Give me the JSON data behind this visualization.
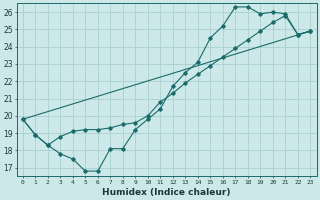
{
  "xlabel": "Humidex (Indice chaleur)",
  "bg_color": "#cce8e8",
  "grid_color": "#aad0d0",
  "line_color": "#1a6b6b",
  "xlim": [
    -0.5,
    23.5
  ],
  "ylim": [
    16.5,
    26.5
  ],
  "xticks": [
    0,
    1,
    2,
    3,
    4,
    5,
    6,
    7,
    8,
    9,
    10,
    11,
    12,
    13,
    14,
    15,
    16,
    17,
    18,
    19,
    20,
    21,
    22,
    23
  ],
  "yticks": [
    17,
    18,
    19,
    20,
    21,
    22,
    23,
    24,
    25,
    26
  ],
  "line1_x": [
    0,
    1,
    2,
    3,
    4,
    5,
    6,
    7,
    8,
    9,
    10,
    11,
    12,
    13,
    14,
    15,
    16,
    17,
    18,
    19,
    20,
    21,
    22,
    23
  ],
  "line1_y": [
    19.8,
    18.9,
    18.3,
    17.8,
    17.5,
    16.8,
    16.8,
    18.1,
    18.1,
    19.2,
    19.8,
    20.4,
    21.7,
    22.5,
    23.1,
    24.5,
    25.2,
    26.3,
    26.3,
    25.9,
    26.0,
    25.9,
    24.7,
    24.9
  ],
  "line2_x": [
    0,
    1,
    2,
    3,
    4,
    5,
    6,
    7,
    8,
    9,
    10,
    11,
    12,
    13,
    14,
    15,
    16,
    17,
    18,
    19,
    20,
    21,
    22,
    23
  ],
  "line2_y": [
    19.8,
    18.9,
    18.3,
    18.8,
    19.1,
    19.2,
    19.2,
    19.3,
    19.5,
    19.6,
    20.0,
    20.8,
    21.3,
    21.9,
    22.4,
    22.9,
    23.4,
    23.9,
    24.4,
    24.9,
    25.4,
    25.8,
    24.7,
    24.9
  ],
  "line3_x": [
    0,
    23
  ],
  "line3_y": [
    19.8,
    24.9
  ]
}
